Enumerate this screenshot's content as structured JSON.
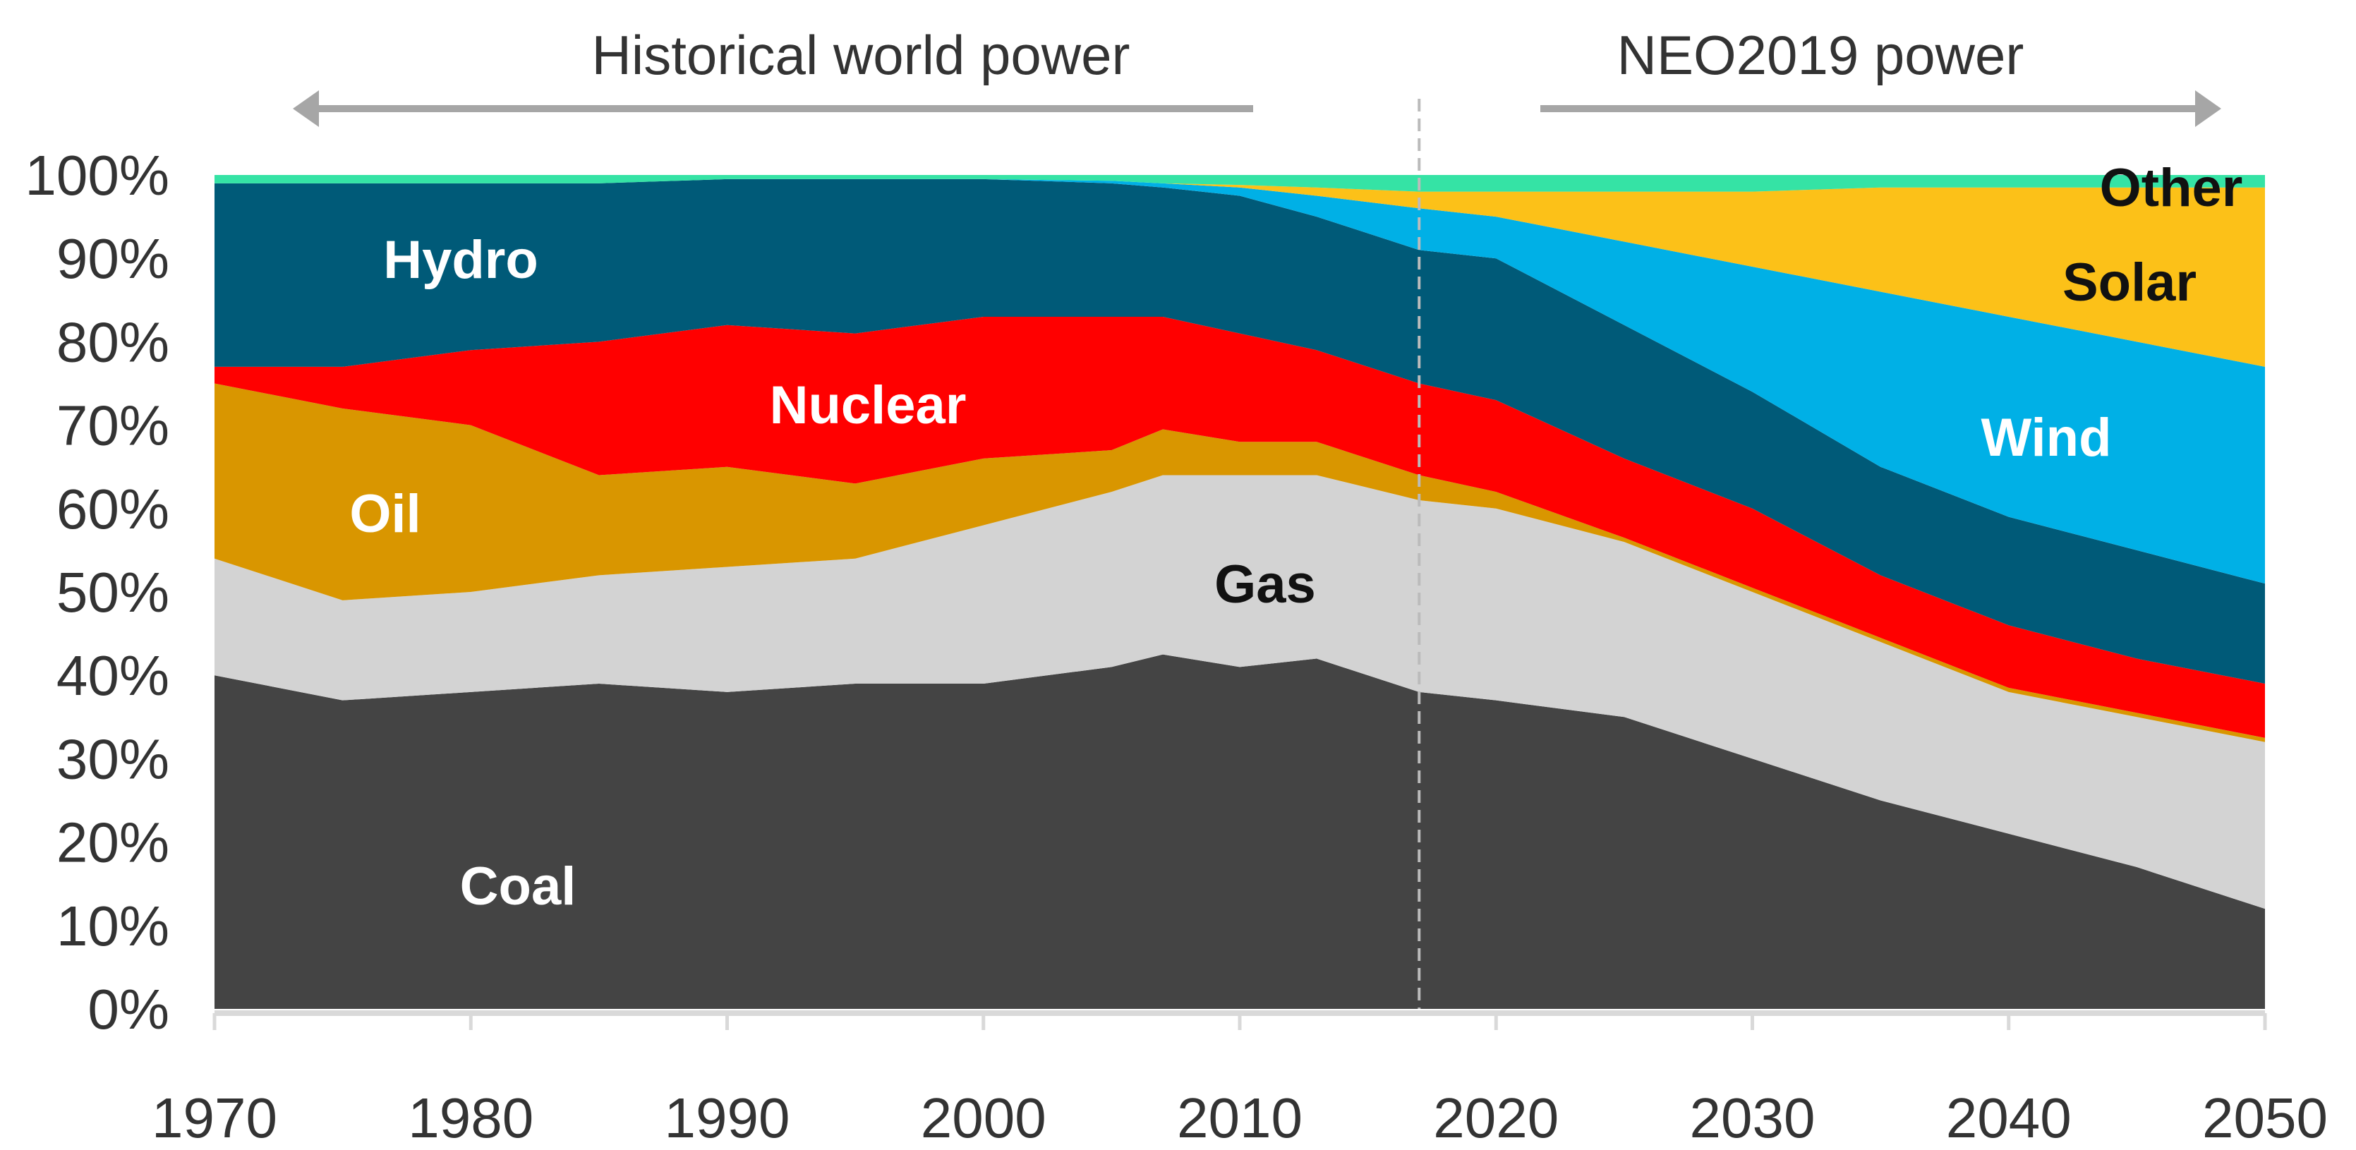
{
  "chart_data": {
    "type": "area",
    "stacked": true,
    "normalized": true,
    "headers": {
      "historical": "Historical world power",
      "forecast": "NEO2019 power"
    },
    "divider_year": 2017,
    "xlabel": "",
    "ylabel": "",
    "xlim": [
      1970,
      2050
    ],
    "ylim": [
      0,
      100
    ],
    "x_ticks": [
      "1970",
      "1980",
      "1990",
      "2000",
      "2010",
      "2020",
      "2030",
      "2040",
      "2050"
    ],
    "y_ticks": [
      "0%",
      "10%",
      "20%",
      "30%",
      "40%",
      "50%",
      "60%",
      "70%",
      "80%",
      "90%",
      "100%"
    ],
    "x": [
      1970,
      1975,
      1980,
      1985,
      1990,
      1995,
      2000,
      2005,
      2007,
      2010,
      2013,
      2017,
      2020,
      2025,
      2030,
      2035,
      2040,
      2045,
      2050
    ],
    "series": [
      {
        "name": "Coal",
        "color": "#444444",
        "label_color": "#ffffff",
        "values": [
          40,
          37,
          38,
          39,
          38,
          39,
          39,
          41,
          42.5,
          41,
          42,
          38,
          37,
          35,
          30,
          25,
          21,
          17,
          12
        ]
      },
      {
        "name": "Gas",
        "color": "#d3d3d3",
        "label_color": "#111111",
        "values": [
          14,
          12,
          12,
          13,
          15,
          15,
          19,
          21,
          21.5,
          23,
          22,
          23,
          23,
          21,
          20,
          19,
          17,
          18,
          20
        ]
      },
      {
        "name": "Oil",
        "color": "#d99600",
        "label_color": "#ffffff",
        "values": [
          21,
          23,
          20,
          12,
          12,
          9,
          8,
          5,
          5.5,
          4,
          4,
          3,
          2,
          0.5,
          0.5,
          0.5,
          0.5,
          0.5,
          0.5
        ]
      },
      {
        "name": "Nuclear",
        "color": "#ff0000",
        "label_color": "#ffffff",
        "values": [
          2,
          5,
          9,
          16,
          17,
          18,
          17,
          16,
          13.5,
          13,
          11,
          11,
          11,
          9.5,
          9.5,
          7.5,
          7.5,
          6.5,
          6.5
        ]
      },
      {
        "name": "Hydro",
        "color": "#005a78",
        "label_color": "#ffffff",
        "values": [
          22,
          22,
          20,
          19,
          17.5,
          18.5,
          16.5,
          16,
          15.5,
          16.5,
          16,
          16,
          17,
          16,
          14,
          13,
          13,
          13,
          12
        ]
      },
      {
        "name": "Wind",
        "color": "#00b0e6",
        "label_color": "#ffffff",
        "values": [
          0,
          0,
          0,
          0,
          0,
          0,
          0,
          0.3,
          0.5,
          1,
          2.5,
          5,
          5,
          10,
          15,
          21,
          24,
          25,
          26
        ]
      },
      {
        "name": "Solar",
        "color": "#fcc118",
        "label_color": "#111111",
        "values": [
          0,
          0,
          0,
          0,
          0,
          0,
          0,
          0,
          0,
          0.3,
          1,
          2,
          3,
          6,
          9,
          12.5,
          15.5,
          18.5,
          21.5
        ]
      },
      {
        "name": "Other",
        "color": "#35e3a5",
        "label_color": "#111111",
        "values": [
          1,
          1,
          1,
          1,
          0.5,
          0.5,
          0.5,
          0.7,
          1,
          1.2,
          1.5,
          2,
          2,
          2,
          2,
          1.5,
          1.5,
          1.5,
          1.5
        ]
      }
    ]
  }
}
